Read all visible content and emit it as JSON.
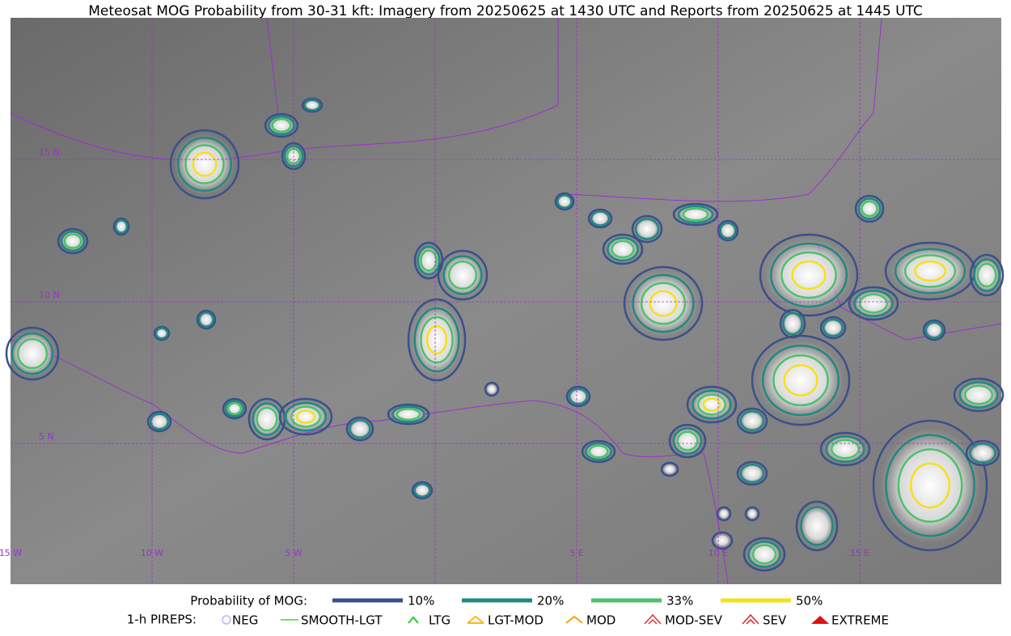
{
  "title": "Meteosat MOG Probability from 30-31 kft: Imagery from 20250625 at 1430 UTC and Reports from 20250625 at 1445 UTC",
  "map": {
    "lat_labels": [
      "15 N",
      "10 N",
      "5 N"
    ],
    "lon_labels": [
      "15 W",
      "10 W",
      "5 W",
      "5 E",
      "10 E",
      "15 E"
    ]
  },
  "legend": {
    "probability": {
      "label": "Probability of MOG:",
      "items": [
        {
          "label": "10%",
          "color": "#3b4f8c"
        },
        {
          "label": "20%",
          "color": "#1f8a80"
        },
        {
          "label": "33%",
          "color": "#4cc26a"
        },
        {
          "label": "50%",
          "color": "#f5e11a"
        }
      ]
    },
    "pireps": {
      "label": "1-h PIREPS:",
      "items": [
        {
          "label": "NEG",
          "color": "#b8b8f0"
        },
        {
          "label": "SMOOTH-LGT",
          "color": "#33dd33"
        },
        {
          "label": "LTG",
          "color": "#22cc22"
        },
        {
          "label": "LGT-MOD",
          "color": "#f5b820"
        },
        {
          "label": "MOD",
          "color": "#f5a010"
        },
        {
          "label": "MOD-SEV",
          "color": "#e83030"
        },
        {
          "label": "SEV",
          "color": "#e02020"
        },
        {
          "label": "EXTREME",
          "color": "#dd1111"
        }
      ]
    }
  }
}
